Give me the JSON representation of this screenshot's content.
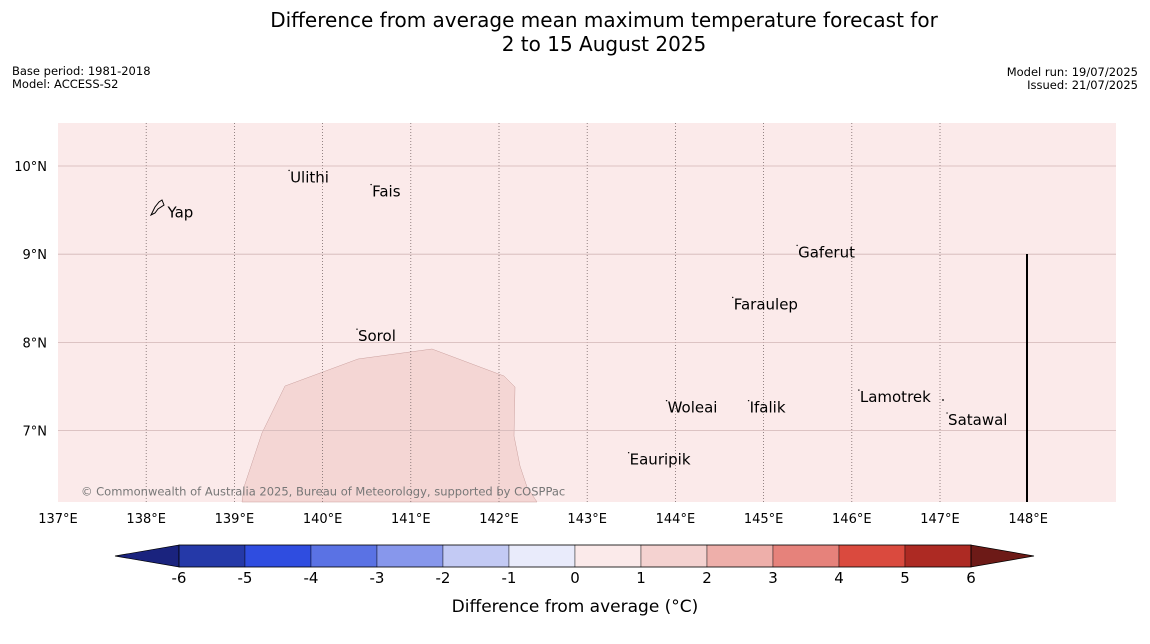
{
  "title": {
    "line1": "Difference from average mean maximum temperature forecast for",
    "line2": "2 to 15 August 2025"
  },
  "meta_left": {
    "base_period": "Base period: 1981-2018",
    "model": "Model: ACCESS-S2"
  },
  "meta_right": {
    "model_run": "Model run: 19/07/2025",
    "issued": "Issued: 21/07/2025"
  },
  "map": {
    "lon_ticks": [
      {
        "lon": 137,
        "label": "137°E"
      },
      {
        "lon": 138,
        "label": "138°E"
      },
      {
        "lon": 139,
        "label": "139°E"
      },
      {
        "lon": 140,
        "label": "140°E"
      },
      {
        "lon": 141,
        "label": "141°E"
      },
      {
        "lon": 142,
        "label": "142°E"
      },
      {
        "lon": 143,
        "label": "143°E"
      },
      {
        "lon": 144,
        "label": "144°E"
      },
      {
        "lon": 145,
        "label": "145°E"
      },
      {
        "lon": 146,
        "label": "146°E"
      },
      {
        "lon": 147,
        "label": "147°E"
      },
      {
        "lon": 148,
        "label": "148°E"
      }
    ],
    "lat_ticks": [
      {
        "lat": 10,
        "label": "10°N"
      },
      {
        "lat": 9,
        "label": "9°N"
      },
      {
        "lat": 8,
        "label": "8°N"
      },
      {
        "lat": 7,
        "label": "7°N"
      }
    ],
    "background_category": "0 to 1",
    "places": [
      {
        "name": "Yap",
        "lon": 138.23,
        "lat": 9.47
      },
      {
        "name": "Ulithi",
        "lon": 139.62,
        "lat": 9.87
      },
      {
        "name": "Fais",
        "lon": 140.55,
        "lat": 9.71
      },
      {
        "name": "Gaferut",
        "lon": 145.38,
        "lat": 9.02
      },
      {
        "name": "Faraulep",
        "lon": 144.65,
        "lat": 8.43
      },
      {
        "name": "Sorol",
        "lon": 140.39,
        "lat": 8.07
      },
      {
        "name": "Lamotrek",
        "lon": 146.08,
        "lat": 7.38
      },
      {
        "name": "Woleai",
        "lon": 143.9,
        "lat": 7.26
      },
      {
        "name": "Ifalik",
        "lon": 144.83,
        "lat": 7.26
      },
      {
        "name": "Satawal",
        "lon": 147.08,
        "lat": 7.12
      },
      {
        "name": "Eauripik",
        "lon": 143.47,
        "lat": 6.67
      }
    ],
    "copyright": "© Commonwealth of Australia 2025, Bureau of Meteorology, supported by COSPPac"
  },
  "colorbar": {
    "label": "Difference from average (°C)",
    "ticks": [
      "-6",
      "-5",
      "-4",
      "-3",
      "-2",
      "-1",
      "0",
      "1",
      "2",
      "3",
      "4",
      "5",
      "6"
    ],
    "low_extend_color": "#1a237e",
    "high_extend_color": "#6d1a17",
    "colors": [
      "#2539a8",
      "#2f4de0",
      "#5a72e4",
      "#8797ec",
      "#c3caf4",
      "#e9ebfb",
      "#fbeaea",
      "#f4d2d0",
      "#eeafaa",
      "#e6827b",
      "#da4a3e",
      "#ad2a23"
    ]
  }
}
